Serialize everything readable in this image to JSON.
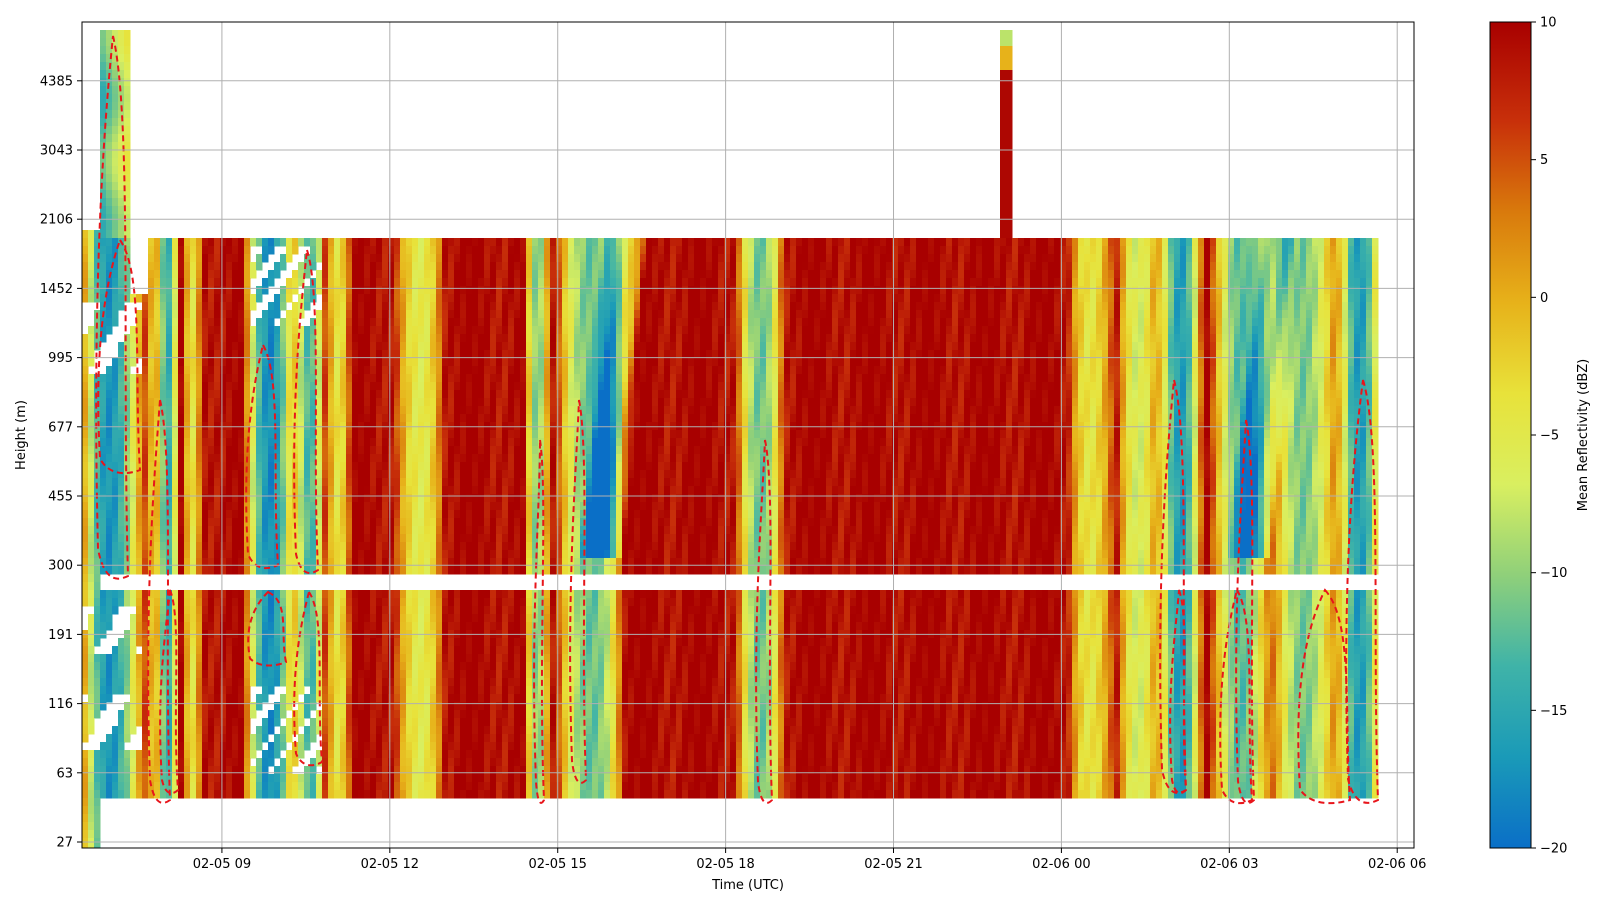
{
  "chart_data": {
    "type": "heatmap",
    "xlabel": "Time (UTC)",
    "ylabel": "Height (m)",
    "x_ticks": [
      "02-05 09",
      "02-05 12",
      "02-05 15",
      "02-05 18",
      "02-05 21",
      "02-06 00",
      "02-06 03",
      "02-06 06"
    ],
    "y_ticks": [
      "27",
      "63",
      "116",
      "191",
      "300",
      "455",
      "677",
      "995",
      "1452",
      "2106",
      "3043",
      "4385"
    ],
    "xlim_hours": [
      6.5,
      30.3
    ],
    "grid": true,
    "colorbar": {
      "label": "Mean Reflectivity (dBZ)",
      "min": -20,
      "max": 10,
      "ticks": [
        "10",
        "5",
        "0",
        "−5",
        "−10",
        "−15",
        "−20"
      ],
      "colors": [
        "#0a6fc7",
        "#1a9ab8",
        "#3fb3a8",
        "#8fd07a",
        "#d9ef60",
        "#e8e23a",
        "#e7b21a",
        "#d97a0c",
        "#c8300a",
        "#a80000"
      ]
    },
    "contour": {
      "style": "dashed",
      "color": "#e8151b"
    }
  }
}
